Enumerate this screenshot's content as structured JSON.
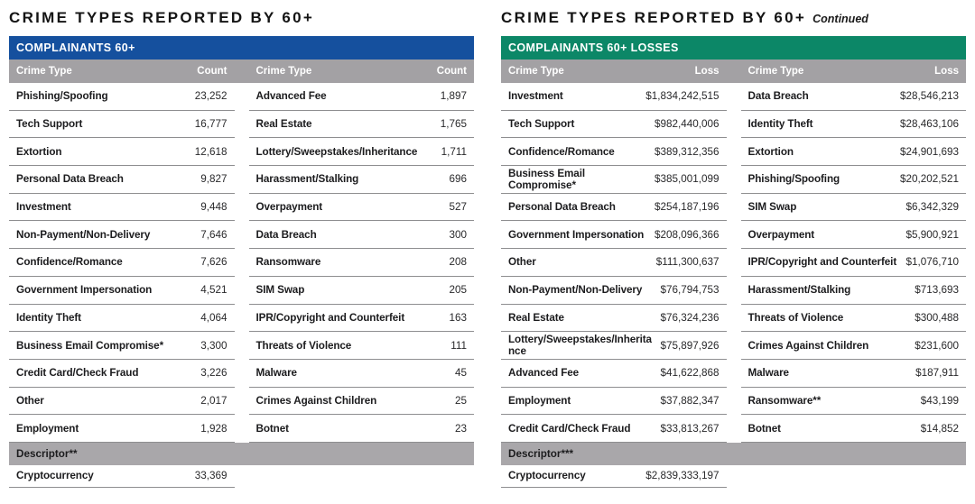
{
  "panels": [
    {
      "title": "CRIME TYPES REPORTED BY 60+",
      "title_suffix": "",
      "banner": {
        "label": "COMPLAINANTS 60+",
        "color": "#15509e"
      },
      "columns": [
        "Crime Type",
        "Count",
        "Crime Type",
        "Count"
      ],
      "rows": [
        [
          "Phishing/Spoofing",
          "23,252",
          "Advanced Fee",
          "1,897"
        ],
        [
          "Tech Support",
          "16,777",
          "Real Estate",
          "1,765"
        ],
        [
          "Extortion",
          "12,618",
          "Lottery/Sweepstakes/Inheritance",
          "1,711"
        ],
        [
          "Personal Data Breach",
          "9,827",
          "Harassment/Stalking",
          "696"
        ],
        [
          "Investment",
          "9,448",
          "Overpayment",
          "527"
        ],
        [
          "Non-Payment/Non-Delivery",
          "7,646",
          "Data Breach",
          "300"
        ],
        [
          "Confidence/Romance",
          "7,626",
          "Ransomware",
          "208"
        ],
        [
          "Government Impersonation",
          "4,521",
          "SIM Swap",
          "205"
        ],
        [
          "Identity Theft",
          "4,064",
          "IPR/Copyright and Counterfeit",
          "163"
        ],
        [
          "Business Email Compromise*",
          "3,300",
          "Threats of Violence",
          "111"
        ],
        [
          "Credit Card/Check Fraud",
          "3,226",
          "Malware",
          "45"
        ],
        [
          "Other",
          "2,017",
          "Crimes Against Children",
          "25"
        ],
        [
          "Employment",
          "1,928",
          "Botnet",
          "23"
        ]
      ],
      "descriptor": {
        "label": "Descriptor**",
        "row": [
          "Cryptocurrency",
          "33,369"
        ]
      }
    },
    {
      "title": "CRIME TYPES REPORTED BY 60+",
      "title_suffix": "Continued",
      "banner": {
        "label": "COMPLAINANTS 60+ LOSSES",
        "color": "#0c8767"
      },
      "columns": [
        "Crime Type",
        "Loss",
        "Crime Type",
        "Loss"
      ],
      "rows": [
        [
          "Investment",
          "$1,834,242,515",
          "Data Breach",
          "$28,546,213"
        ],
        [
          "Tech Support",
          "$982,440,006",
          "Identity Theft",
          "$28,463,106"
        ],
        [
          "Confidence/Romance",
          "$389,312,356",
          "Extortion",
          "$24,901,693"
        ],
        [
          "Business Email Compromise*",
          "$385,001,099",
          "Phishing/Spoofing",
          "$20,202,521"
        ],
        [
          "Personal Data Breach",
          "$254,187,196",
          "SIM Swap",
          "$6,342,329"
        ],
        [
          "Government Impersonation",
          "$208,096,366",
          "Overpayment",
          "$5,900,921"
        ],
        [
          "Other",
          "$111,300,637",
          "IPR/Copyright and Counterfeit",
          "$1,076,710"
        ],
        [
          "Non-Payment/Non-Delivery",
          "$76,794,753",
          "Harassment/Stalking",
          "$713,693"
        ],
        [
          "Real Estate",
          "$76,324,236",
          "Threats of Violence",
          "$300,488"
        ],
        [
          "Lottery/Sweepstakes/Inheritance",
          "$75,897,926",
          "Crimes Against Children",
          "$231,600"
        ],
        [
          "Advanced Fee",
          "$41,622,868",
          "Malware",
          "$187,911"
        ],
        [
          "Employment",
          "$37,882,347",
          "Ransomware**",
          "$43,199"
        ],
        [
          "Credit Card/Check Fraud",
          "$33,813,267",
          "Botnet",
          "$14,852"
        ]
      ],
      "descriptor": {
        "label": "Descriptor***",
        "row": [
          "Cryptocurrency",
          "$2,839,333,197"
        ]
      }
    }
  ]
}
